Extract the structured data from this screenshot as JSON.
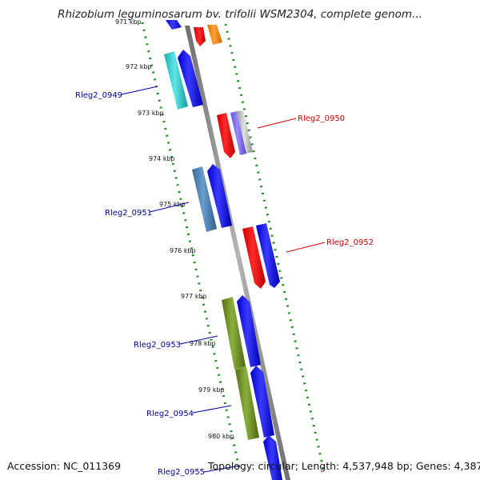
{
  "title": "Rhizobium leguminosarum bv. trifolii WSM2304, complete genom...",
  "footer": {
    "accession": "Accession: NC_011369",
    "summary": "Topology: circular; Length: 4,537,948 bp; Genes: 4,387"
  },
  "ticks": [
    "971 kbp",
    "972 kbp",
    "973 kbp",
    "974 kbp",
    "975 kbp",
    "976 kbp",
    "977 kbp",
    "978 kbp",
    "979 kbp",
    "980 kbp"
  ],
  "gene_labels": {
    "g0949": "Rleg2_0949",
    "g0950": "Rleg2_0950",
    "g0951": "Rleg2_0951",
    "g0952": "Rleg2_0952",
    "g0953": "Rleg2_0953",
    "g0954": "Rleg2_0954",
    "g0955": "Rleg2_0955"
  },
  "colors": {
    "backbone": "#8a8a8a",
    "dots": "#1b8a1b",
    "cds": "#0000ee",
    "label_left": "#0000aa",
    "label_right": "#cc0000",
    "red": "#ee0000",
    "orange": "#ff8800",
    "cyan": "#20c8c8",
    "steelblue": "#4682b4",
    "olive": "#6b8e23",
    "slateblue": "#7b68ee",
    "silver": "#bbbbbb"
  }
}
